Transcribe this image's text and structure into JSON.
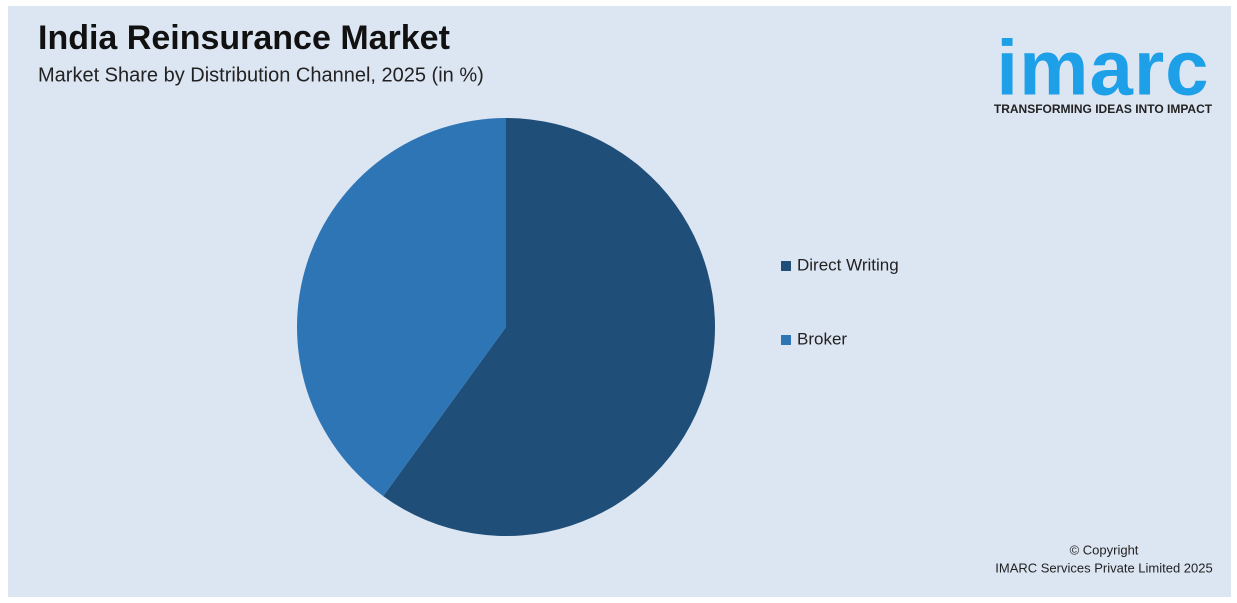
{
  "chart_data": {
    "type": "pie",
    "title": "India Reinsurance Market",
    "subtitle": "Market Share by Distribution Channel, 2025 (in %)",
    "categories": [
      "Direct Writing",
      "Broker"
    ],
    "values": [
      60,
      40
    ],
    "colors": [
      "#1f4e79",
      "#2e75b6"
    ],
    "legend": "right"
  },
  "logo": {
    "name": "imarc",
    "tagline": "TRANSFORMING IDEAS INTO IMPACT"
  },
  "footer": {
    "line1": "© Copyright",
    "line2": "IMARC Services Private Limited 2025"
  }
}
